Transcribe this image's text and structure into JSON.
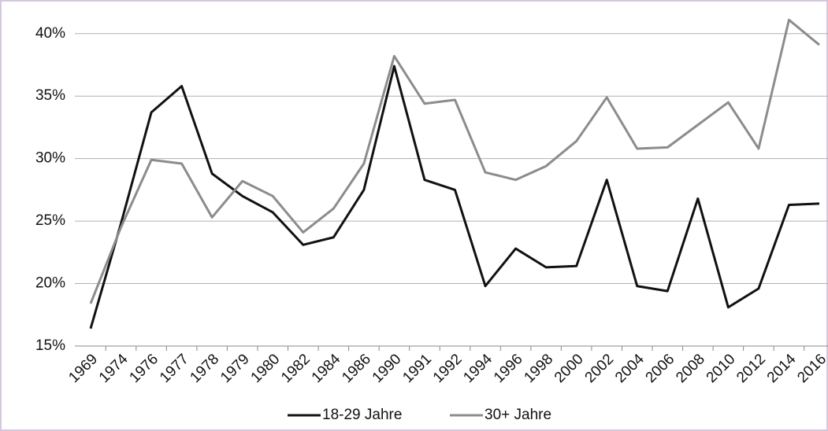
{
  "chart_data": {
    "type": "line",
    "categories": [
      "1969",
      "1974",
      "1976",
      "1977",
      "1978",
      "1979",
      "1980",
      "1982",
      "1984",
      "1986",
      "1990",
      "1991",
      "1992",
      "1994",
      "1996",
      "1998",
      "2000",
      "2002",
      "2004",
      "2006",
      "2008",
      "2010",
      "2012",
      "2014",
      "2016"
    ],
    "series": [
      {
        "name": "18-29 Jahre",
        "color": "#111111",
        "values": [
          16.4,
          24.8,
          33.7,
          35.8,
          28.8,
          27.0,
          25.7,
          23.1,
          23.7,
          27.5,
          37.4,
          28.3,
          27.5,
          19.8,
          22.8,
          21.3,
          21.4,
          28.3,
          19.8,
          19.4,
          26.8,
          18.1,
          19.6,
          26.3,
          26.4
        ]
      },
      {
        "name": "30+ Jahre",
        "color": "#8c8c8c",
        "values": [
          18.4,
          24.5,
          29.9,
          29.6,
          25.3,
          28.2,
          27.0,
          24.1,
          26.0,
          29.6,
          38.2,
          34.4,
          34.7,
          28.9,
          28.3,
          29.4,
          31.4,
          34.9,
          30.8,
          30.9,
          32.7,
          34.5,
          30.8,
          41.1,
          39.1
        ]
      }
    ],
    "ylim": [
      15,
      42
    ],
    "yticks": [
      {
        "value": 15,
        "label": "15%"
      },
      {
        "value": 20,
        "label": "20%"
      },
      {
        "value": 25,
        "label": "25%"
      },
      {
        "value": 30,
        "label": "30%"
      },
      {
        "value": 35,
        "label": "35%"
      },
      {
        "value": 40,
        "label": "40%"
      }
    ],
    "grid": true,
    "legend": "bottom"
  }
}
